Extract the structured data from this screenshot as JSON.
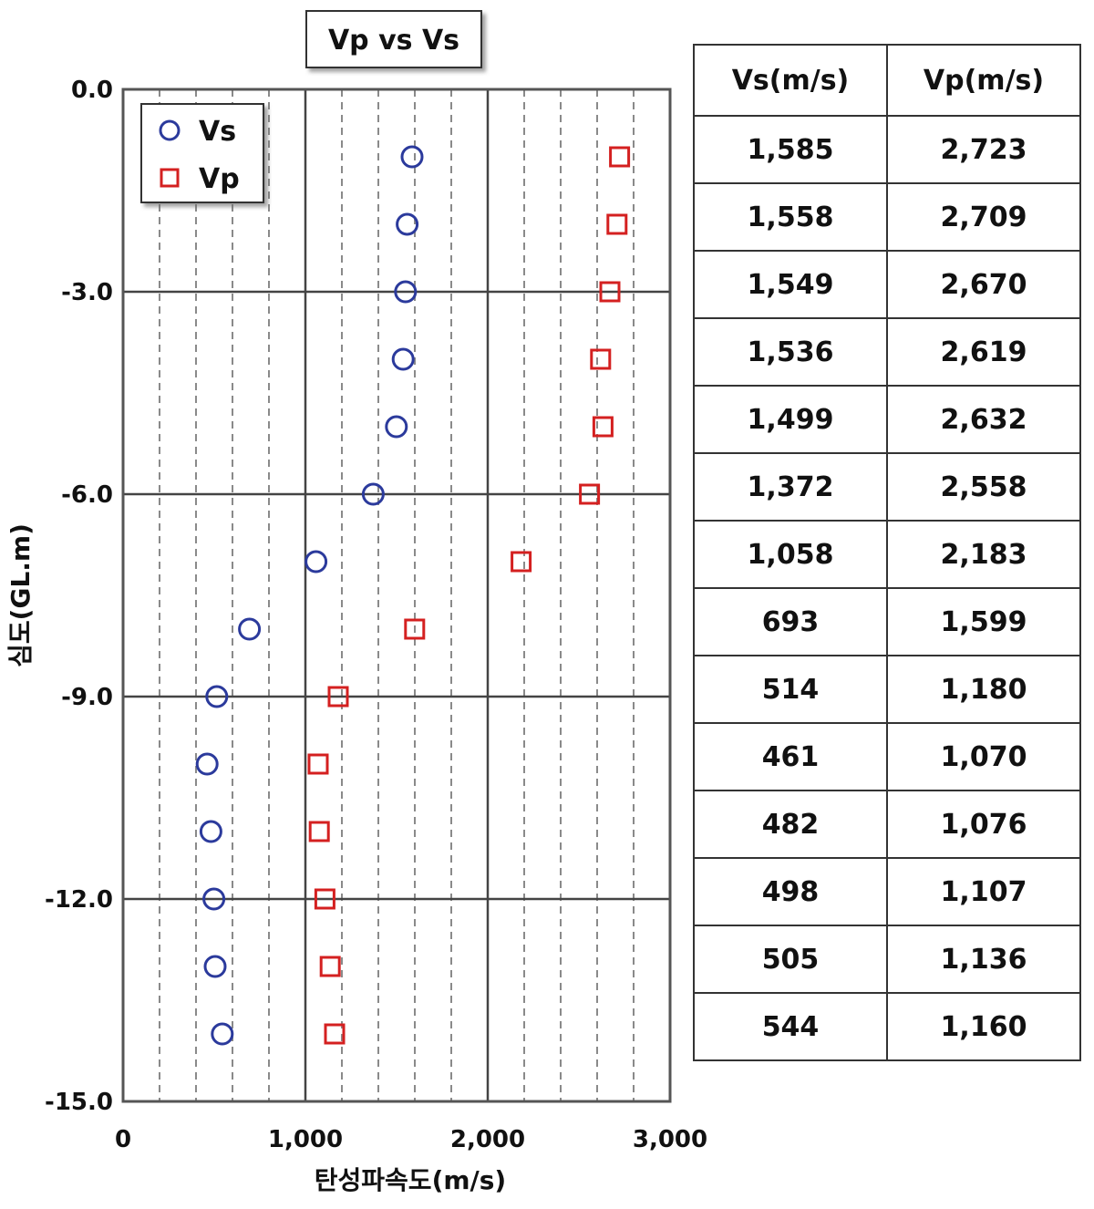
{
  "chart_data": {
    "type": "scatter",
    "title": "Vp vs Vs",
    "xlabel": "탄성파속도(m/s)",
    "ylabel": "심도(GL.m)",
    "xlim": [
      0,
      3000
    ],
    "ylim": [
      -15,
      0
    ],
    "x_ticks": [
      "0",
      "1,000",
      "2,000",
      "3,000"
    ],
    "y_ticks": [
      "0.0",
      "-3.0",
      "-6.0",
      "-9.0",
      "-12.0",
      "-15.0"
    ],
    "grid": true,
    "legend_position": "top-left",
    "series": [
      {
        "name": "Vs",
        "marker": "circle",
        "color": "#2b3a9c",
        "depth": [
          -1,
          -2,
          -3,
          -4,
          -5,
          -6,
          -7,
          -8,
          -9,
          -10,
          -11,
          -12,
          -13,
          -14
        ],
        "values": [
          1585,
          1558,
          1549,
          1536,
          1499,
          1372,
          1058,
          693,
          514,
          461,
          482,
          498,
          505,
          544
        ]
      },
      {
        "name": "Vp",
        "marker": "square",
        "color": "#d42020",
        "depth": [
          -1,
          -2,
          -3,
          -4,
          -5,
          -6,
          -7,
          -8,
          -9,
          -10,
          -11,
          -12,
          -13,
          -14
        ],
        "values": [
          2723,
          2709,
          2670,
          2619,
          2632,
          2558,
          2183,
          1599,
          1180,
          1070,
          1076,
          1107,
          1136,
          1160
        ]
      }
    ]
  },
  "table": {
    "headers": [
      "Vs(m/s)",
      "Vp(m/s)"
    ],
    "rows": [
      [
        "1,585",
        "2,723"
      ],
      [
        "1,558",
        "2,709"
      ],
      [
        "1,549",
        "2,670"
      ],
      [
        "1,536",
        "2,619"
      ],
      [
        "1,499",
        "2,632"
      ],
      [
        "1,372",
        "2,558"
      ],
      [
        "1,058",
        "2,183"
      ],
      [
        "693",
        "1,599"
      ],
      [
        "514",
        "1,180"
      ],
      [
        "461",
        "1,070"
      ],
      [
        "482",
        "1,076"
      ],
      [
        "498",
        "1,107"
      ],
      [
        "505",
        "1,136"
      ],
      [
        "544",
        "1,160"
      ]
    ]
  }
}
